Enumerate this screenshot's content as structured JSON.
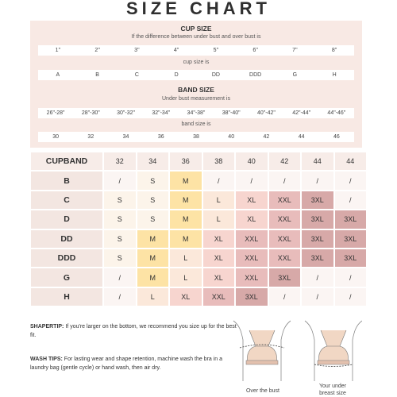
{
  "title": "SIZE CHART",
  "cup_size": {
    "heading": "CUP SIZE",
    "note": "If the difference between under bust and over bust is",
    "diffs": [
      "1\"",
      "2\"",
      "3\"",
      "4\"",
      "5\"",
      "6\"",
      "7\"",
      "8\""
    ],
    "result_label": "cup size is",
    "cups": [
      "A",
      "B",
      "C",
      "D",
      "DD",
      "DDD",
      "G",
      "H"
    ]
  },
  "band_size": {
    "heading": "BAND SIZE",
    "note": "Under bust measurement is",
    "ranges": [
      "26\"-28\"",
      "28\"-30\"",
      "30\"-32\"",
      "32\"-34\"",
      "34\"-38\"",
      "38\"-40\"",
      "40\"-42\"",
      "42\"-44\"",
      "44\"-46\""
    ],
    "result_label": "band size is",
    "bands": [
      "30",
      "32",
      "34",
      "36",
      "38",
      "40",
      "42",
      "44",
      "46"
    ]
  },
  "table": {
    "corner": "CUPBAND",
    "columns": [
      "32",
      "34",
      "36",
      "38",
      "40",
      "42",
      "44",
      "44"
    ],
    "rows": [
      {
        "cup": "B",
        "cells": [
          "/",
          "S",
          "M",
          "/",
          "/",
          "/",
          "/",
          "/"
        ]
      },
      {
        "cup": "C",
        "cells": [
          "S",
          "S",
          "M",
          "L",
          "XL",
          "XXL",
          "3XL",
          "/"
        ]
      },
      {
        "cup": "D",
        "cells": [
          "S",
          "S",
          "M",
          "L",
          "XL",
          "XXL",
          "3XL",
          "3XL"
        ]
      },
      {
        "cup": "DD",
        "cells": [
          "S",
          "M",
          "M",
          "XL",
          "XXL",
          "XXL",
          "3XL",
          "3XL"
        ]
      },
      {
        "cup": "DDD",
        "cells": [
          "S",
          "M",
          "L",
          "XL",
          "XXL",
          "XXL",
          "3XL",
          "3XL"
        ]
      },
      {
        "cup": "G",
        "cells": [
          "/",
          "M",
          "L",
          "XL",
          "XXL",
          "3XL",
          "/",
          "/"
        ]
      },
      {
        "cup": "H",
        "cells": [
          "/",
          "L",
          "XL",
          "XXL",
          "3XL",
          "/",
          "/",
          "/"
        ]
      }
    ]
  },
  "tips": {
    "shaper_label": "SHAPERTIP:",
    "shaper_text": "If you're larger on the bottom, we recommend you size up for the best fit.",
    "wash_label": "WASH TIPS:",
    "wash_text": "For lasting wear and shape retention, machine wash the bra in a laundry bag (gentle cycle) or hand wash, then air dry."
  },
  "figures": {
    "left_caption": "Over the bust",
    "right_caption_1": "Your under",
    "right_caption_2": "breast size"
  },
  "colors": {
    "panel": "#f8e9e4",
    "S": "#fcf4ea",
    "M": "#fde3a5",
    "L": "#fbe8da",
    "XL": "#f7d5cf",
    "XXL": "#e8bcbb",
    "3XL": "#d7a9a8"
  }
}
